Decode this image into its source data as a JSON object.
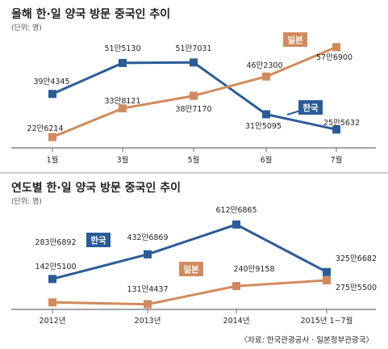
{
  "chart_data": [
    {
      "type": "line",
      "title": "올해 한·일 양국 방문 중국인 추이",
      "unit": "(단위: 명)",
      "categories": [
        "1월",
        "3월",
        "5월",
        "6월",
        "7월"
      ],
      "series": [
        {
          "name": "한국",
          "color": "#2b5c97",
          "values": [
            394345,
            515130,
            517031,
            315095,
            255632
          ],
          "labels": [
            "39만4345",
            "51만5130",
            "51만7031",
            "31만5095",
            "25만5632"
          ]
        },
        {
          "name": "일본",
          "color": "#d08a5c",
          "values": [
            226214,
            338121,
            387170,
            462300,
            576900
          ],
          "labels": [
            "22만6214",
            "33만8121",
            "38만7170",
            "46만2300",
            "57만6900"
          ]
        }
      ]
    },
    {
      "type": "line",
      "title": "연도별 한·일 양국 방문 중국인 추이",
      "unit": "(단위: 명)",
      "categories": [
        "2012년",
        "2013년",
        "2014년",
        "2015년 1~7월"
      ],
      "series": [
        {
          "name": "한국",
          "color": "#2b5c97",
          "values": [
            2836892,
            4326869,
            6126865,
            3256682
          ],
          "labels": [
            "283만6892",
            "432만6869",
            "612만6865",
            "325만6682"
          ]
        },
        {
          "name": "일본",
          "color": "#d08a5c",
          "values": [
            1425100,
            1314437,
            2409158,
            2755500
          ],
          "labels": [
            "142만5100",
            "131만4437",
            "240만9158",
            "275만5500"
          ]
        }
      ]
    }
  ],
  "source": "〈자료: 한국관광공사 · 일본정부관광국〉"
}
